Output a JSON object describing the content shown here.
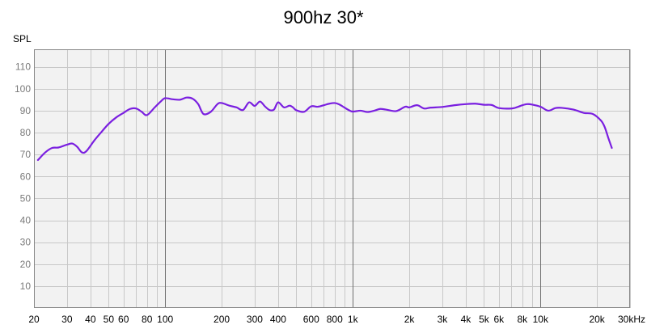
{
  "chart_data": {
    "type": "line",
    "title": "900hz 30*",
    "ylabel": "SPL",
    "xlabel": "",
    "xscale": "log",
    "xlim": [
      20,
      30000
    ],
    "ylim": [
      0,
      118
    ],
    "grid": true,
    "yticks": [
      10,
      20,
      30,
      40,
      50,
      60,
      70,
      80,
      90,
      100,
      110
    ],
    "xticks": [
      {
        "v": 20,
        "label": "20"
      },
      {
        "v": 30,
        "label": "30"
      },
      {
        "v": 40,
        "label": "40"
      },
      {
        "v": 50,
        "label": "50"
      },
      {
        "v": 60,
        "label": "60"
      },
      {
        "v": 80,
        "label": "80"
      },
      {
        "v": 100,
        "label": "100"
      },
      {
        "v": 200,
        "label": "200"
      },
      {
        "v": 300,
        "label": "300"
      },
      {
        "v": 400,
        "label": "400"
      },
      {
        "v": 600,
        "label": "600"
      },
      {
        "v": 800,
        "label": "800"
      },
      {
        "v": 1000,
        "label": "1k"
      },
      {
        "v": 2000,
        "label": "2k"
      },
      {
        "v": 3000,
        "label": "3k"
      },
      {
        "v": 4000,
        "label": "4k"
      },
      {
        "v": 5000,
        "label": "5k"
      },
      {
        "v": 6000,
        "label": "6k"
      },
      {
        "v": 8000,
        "label": "8k"
      },
      {
        "v": 10000,
        "label": "10k"
      },
      {
        "v": 20000,
        "label": "20k"
      },
      {
        "v": 30000,
        "label": "30kHz"
      }
    ],
    "series_color": "#7a1fe0",
    "series": [
      {
        "x": [
          21,
          23,
          25,
          27,
          30,
          32,
          34,
          36,
          38,
          42,
          46,
          50,
          55,
          60,
          65,
          70,
          75,
          80,
          88,
          95,
          100,
          110,
          120,
          130,
          140,
          150,
          160,
          175,
          190,
          200,
          220,
          240,
          260,
          280,
          300,
          320,
          340,
          360,
          380,
          400,
          430,
          460,
          480,
          500,
          550,
          600,
          650,
          700,
          750,
          800,
          850,
          900,
          950,
          1000,
          1100,
          1200,
          1300,
          1400,
          1500,
          1700,
          1900,
          2000,
          2200,
          2400,
          2600,
          3000,
          3500,
          4000,
          4500,
          5000,
          5500,
          6000,
          7000,
          7500,
          8000,
          8500,
          9000,
          10000,
          11000,
          12000,
          13000,
          15000,
          17000,
          19000,
          21000,
          22000,
          23000,
          24000
        ],
        "y": [
          67.5,
          71,
          73,
          73.2,
          74.5,
          75,
          73.5,
          71,
          71.5,
          76.5,
          80.5,
          84,
          87,
          89,
          90.8,
          91,
          89.5,
          88,
          91.5,
          94.3,
          95.7,
          95.2,
          95,
          96,
          95.5,
          93,
          88.5,
          89.5,
          93,
          93.5,
          92.3,
          91.5,
          90.3,
          93.8,
          92.2,
          94.2,
          92,
          90.3,
          90.5,
          93.8,
          91.5,
          92.3,
          91.5,
          90.2,
          89.5,
          92,
          91.8,
          92.5,
          93.2,
          93.5,
          92.8,
          91.5,
          90.3,
          89.6,
          90,
          89.4,
          90,
          90.8,
          90.5,
          89.8,
          91.8,
          91.5,
          92.5,
          91,
          91.4,
          91.7,
          92.5,
          93,
          93.2,
          92.7,
          92.6,
          91.2,
          91,
          91.6,
          92.5,
          93,
          92.8,
          91.8,
          90,
          91.2,
          91.3,
          90.5,
          89,
          88.5,
          85.5,
          82.5,
          77.5,
          73
        ]
      }
    ]
  }
}
